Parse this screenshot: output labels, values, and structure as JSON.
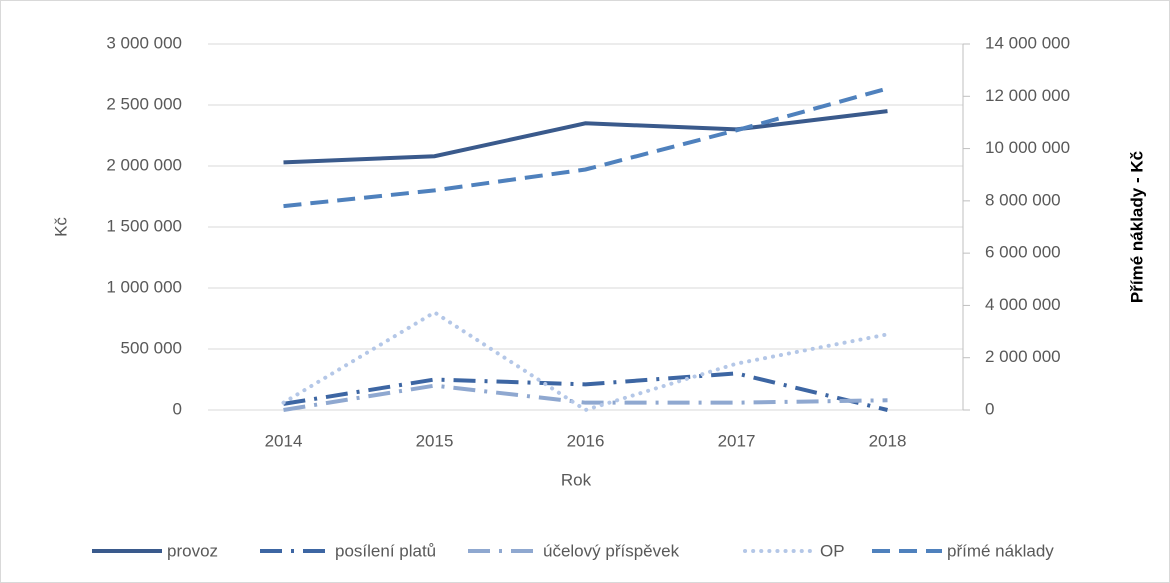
{
  "chart_data": {
    "type": "line",
    "x_label": "Rok",
    "y_label": "Kč",
    "y2_label": "Přímé náklady - Kč",
    "categories": [
      "2014",
      "2015",
      "2016",
      "2017",
      "2018"
    ],
    "series": [
      {
        "name": "provoz",
        "color": "#3a5a8c",
        "dash": "solid",
        "values": [
          2030000,
          2080000,
          2350000,
          2300000,
          2450000
        ]
      },
      {
        "name": "posílení platů",
        "color": "#3d66a3",
        "dash": "long-dash-dot",
        "values": [
          50000,
          250000,
          210000,
          300000,
          0
        ]
      },
      {
        "name": "účelový příspěvek",
        "color": "#8fa8d0",
        "dash": "long-dash-dot",
        "values": [
          0,
          200000,
          60000,
          60000,
          80000
        ]
      },
      {
        "name": "OP",
        "color": "#b4c7e7",
        "dash": "round-dot",
        "values": [
          60000,
          800000,
          0,
          380000,
          620000
        ]
      },
      {
        "name": "přímé náklady",
        "color": "#4f81bd",
        "dash": "dash",
        "axis": "y2",
        "values": [
          7800000,
          8400000,
          9200000,
          10700000,
          12300000
        ]
      }
    ],
    "ylim": [
      0,
      3000000
    ],
    "yticks": [
      0,
      {
        "value": 500000,
        "label": "500 000"
      },
      {
        "value": 1000000,
        "label": "1 000 000"
      },
      {
        "value": 1500000,
        "label": "1 500 000"
      },
      {
        "value": 2000000,
        "label": "2 000 000"
      },
      {
        "value": 2500000,
        "label": "2 500 000"
      },
      {
        "value": 3000000,
        "label": "3 000 000"
      }
    ],
    "y2lim": [
      0,
      14000000
    ],
    "y2ticks": [
      0,
      {
        "value": 2000000,
        "label": "2 000 000"
      },
      {
        "value": 4000000,
        "label": "4 000 000"
      },
      {
        "value": 6000000,
        "label": "6 000 000"
      },
      {
        "value": 8000000,
        "label": "8 000 000"
      },
      {
        "value": 10000000,
        "label": "10 000 000"
      },
      {
        "value": 12000000,
        "label": "12 000 000"
      },
      {
        "value": 14000000,
        "label": "14 000 000"
      }
    ],
    "grid": true,
    "legend": "bottom"
  }
}
